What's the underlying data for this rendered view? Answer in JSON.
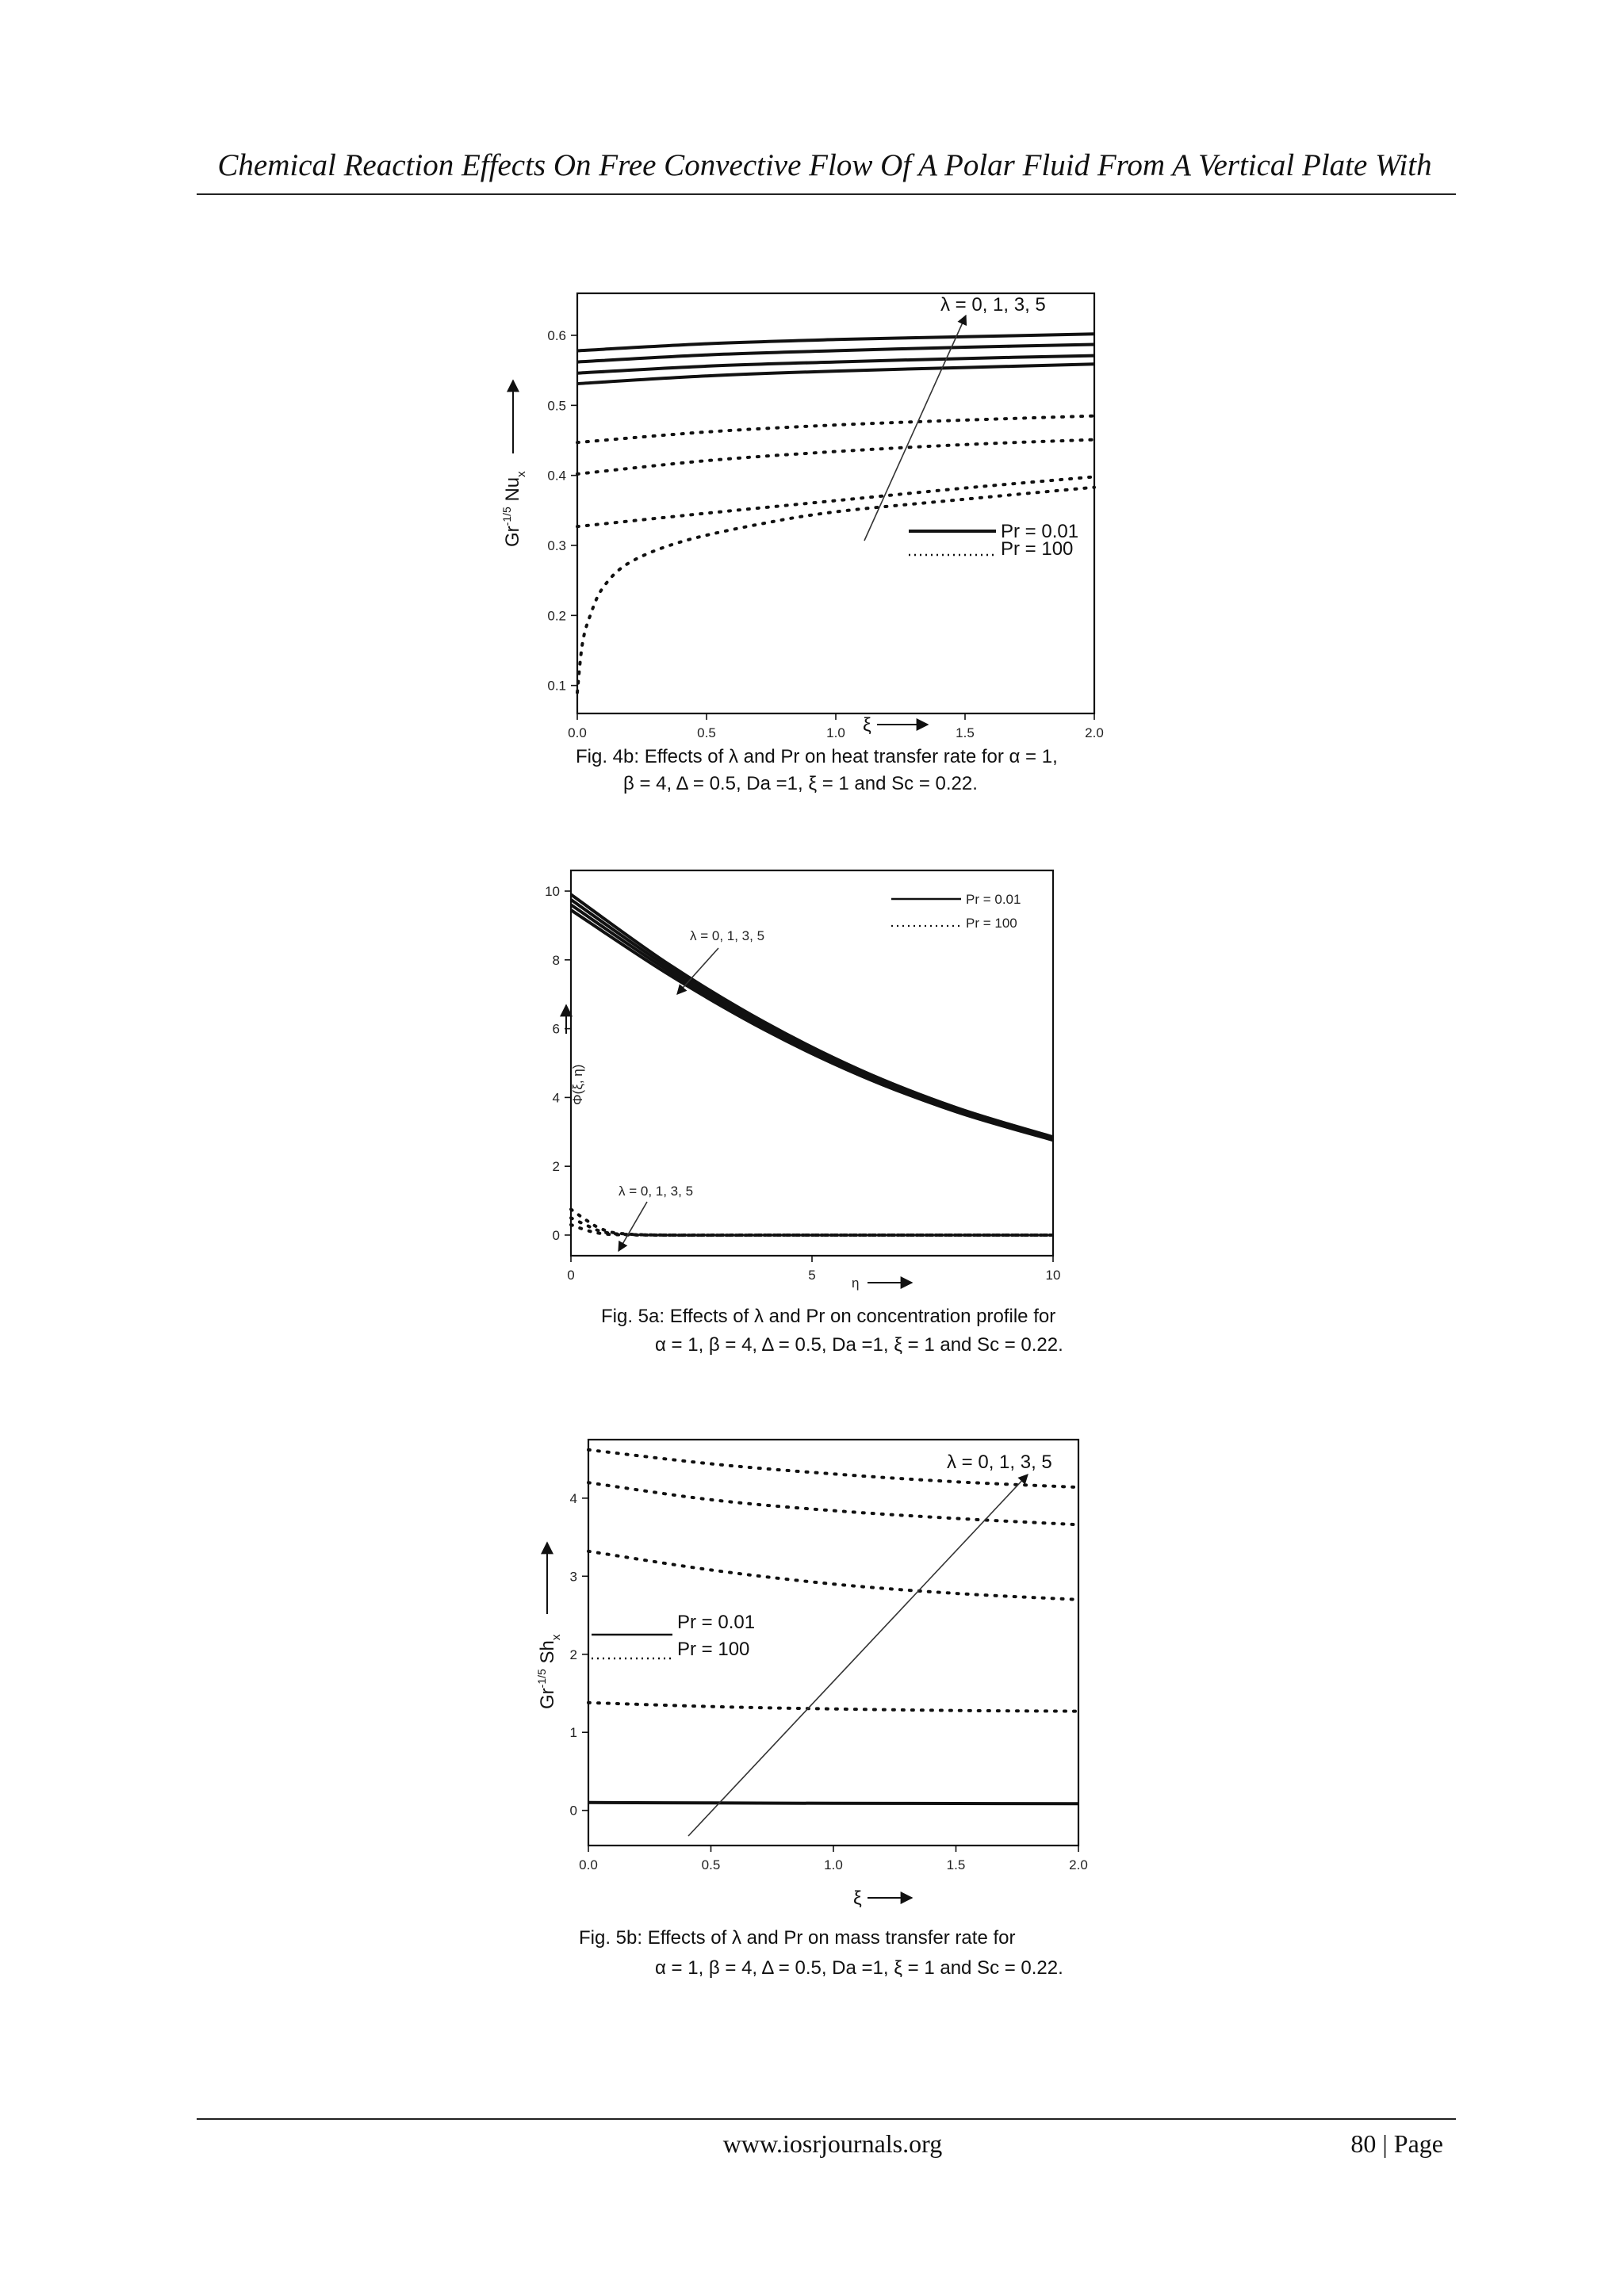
{
  "header": {
    "title": "Chemical Reaction Effects On Free Convective Flow Of A Polar Fluid From A Vertical Plate With"
  },
  "footer": {
    "url": "www.iosrjournals.org",
    "page": "80 | Page"
  },
  "figures": [
    {
      "caption_line1": "Fig. 4b: Effects of λ and Pr on heat transfer rate for α = 1,",
      "caption_line2": "β = 4, Δ = 0.5, Da =1, ξ = 1 and Sc = 0.22.",
      "ylabel": "Gr^-1/5 Nu_x",
      "xlabel": "ξ",
      "annotation": "λ = 0, 1, 3, 5",
      "legend_solid": "Pr = 0.01",
      "legend_dotted": "Pr = 100"
    },
    {
      "caption_line1": "Fig. 5a: Effects of λ and Pr on concentration profile for",
      "caption_line2": "α = 1, β = 4, Δ = 0.5, Da =1, ξ = 1 and Sc = 0.22.",
      "ylabel": "Φ(ξ, η)",
      "xlabel": "η",
      "annotation": "λ = 0, 1, 3, 5",
      "annotation2": "λ = 0, 1, 3, 5",
      "legend_solid": "Pr = 0.01",
      "legend_dotted": "Pr = 100"
    },
    {
      "caption_line1": "Fig. 5b: Effects of λ and Pr on mass transfer rate for",
      "caption_line2": "α = 1, β = 4, Δ = 0.5, Da =1, ξ = 1 and Sc = 0.22.",
      "ylabel": "Gr^-1/5 Sh_x",
      "xlabel": "ξ",
      "annotation": "λ = 0, 1, 3, 5",
      "legend_solid": "Pr = 0.01",
      "legend_dotted": "Pr = 100"
    }
  ],
  "chart_data": [
    {
      "type": "line",
      "x_ticks": [
        "0.0",
        "0.5",
        "1.0",
        "1.5",
        "2.0"
      ],
      "y_ticks": [
        "0.1",
        "0.2",
        "0.3",
        "0.4",
        "0.5",
        "0.6"
      ],
      "xlim": [
        0,
        2
      ],
      "ylim": [
        0.06,
        0.66
      ],
      "series": [
        {
          "name": "Pr = 0.01",
          "style": "solid",
          "x": [
            0,
            0.5,
            1,
            1.5,
            2
          ],
          "y": [
            0.578,
            0.588,
            0.594,
            0.598,
            0.602
          ]
        },
        {
          "name": "Pr = 0.01",
          "style": "solid",
          "x": [
            0,
            0.5,
            1,
            1.5,
            2
          ],
          "y": [
            0.562,
            0.572,
            0.578,
            0.583,
            0.587
          ]
        },
        {
          "name": "Pr = 0.01",
          "style": "solid",
          "x": [
            0,
            0.5,
            1,
            1.5,
            2
          ],
          "y": [
            0.546,
            0.556,
            0.562,
            0.567,
            0.571
          ]
        },
        {
          "name": "Pr = 0.01",
          "style": "solid",
          "x": [
            0,
            0.5,
            1,
            1.5,
            2
          ],
          "y": [
            0.531,
            0.542,
            0.549,
            0.554,
            0.559
          ]
        },
        {
          "name": "Pr = 100",
          "style": "dotted",
          "x": [
            0,
            0.5,
            1,
            1.5,
            2
          ],
          "y": [
            0.447,
            0.462,
            0.472,
            0.479,
            0.485
          ]
        },
        {
          "name": "Pr = 100",
          "style": "dotted",
          "x": [
            0,
            0.5,
            1,
            1.5,
            2
          ],
          "y": [
            0.402,
            0.421,
            0.434,
            0.444,
            0.451
          ]
        },
        {
          "name": "Pr = 100",
          "style": "dotted",
          "x": [
            0,
            0.5,
            1,
            1.5,
            2
          ],
          "y": [
            0.327,
            0.346,
            0.364,
            0.382,
            0.398
          ]
        },
        {
          "name": "Pr = 100",
          "style": "dotted",
          "x": [
            0,
            0.02,
            0.05,
            0.1,
            0.2,
            0.4,
            0.7,
            1,
            1.5,
            2
          ],
          "y": [
            0.09,
            0.16,
            0.2,
            0.24,
            0.275,
            0.305,
            0.33,
            0.348,
            0.366,
            0.383
          ]
        }
      ]
    },
    {
      "type": "line",
      "x_ticks": [
        "0",
        "5",
        "10"
      ],
      "y_ticks": [
        "0",
        "2",
        "4",
        "6",
        "8",
        "10"
      ],
      "xlim": [
        0,
        10
      ],
      "ylim": [
        -0.6,
        10.6
      ],
      "series": [
        {
          "name": "Pr = 0.01",
          "style": "solid",
          "x": [
            0,
            2,
            4,
            6,
            8,
            10
          ],
          "y": [
            9.9,
            7.9,
            6.2,
            4.8,
            3.7,
            2.85
          ]
        },
        {
          "name": "Pr = 0.01",
          "style": "solid",
          "x": [
            0,
            2,
            4,
            6,
            8,
            10
          ],
          "y": [
            9.75,
            7.8,
            6.12,
            4.74,
            3.66,
            2.82
          ]
        },
        {
          "name": "Pr = 0.01",
          "style": "solid",
          "x": [
            0,
            2,
            4,
            6,
            8,
            10
          ],
          "y": [
            9.6,
            7.7,
            6.05,
            4.69,
            3.62,
            2.79
          ]
        },
        {
          "name": "Pr = 0.01",
          "style": "solid",
          "x": [
            0,
            2,
            4,
            6,
            8,
            10
          ],
          "y": [
            9.45,
            7.6,
            5.98,
            4.64,
            3.58,
            2.76
          ]
        },
        {
          "name": "Pr = 100",
          "style": "dotted",
          "x": [
            0,
            0.3,
            0.6,
            1,
            2,
            5,
            10
          ],
          "y": [
            0.75,
            0.45,
            0.2,
            0.05,
            0,
            0,
            0
          ]
        },
        {
          "name": "Pr = 100",
          "style": "dotted",
          "x": [
            0,
            0.3,
            0.6,
            1,
            2,
            5,
            10
          ],
          "y": [
            0.5,
            0.3,
            0.12,
            0.03,
            0,
            0,
            0
          ]
        },
        {
          "name": "Pr = 100",
          "style": "dotted",
          "x": [
            0,
            0.3,
            0.6,
            1,
            2,
            5,
            10
          ],
          "y": [
            0.3,
            0.15,
            0.05,
            0.01,
            0,
            0,
            0
          ]
        }
      ]
    },
    {
      "type": "line",
      "x_ticks": [
        "0.0",
        "0.5",
        "1.0",
        "1.5",
        "2.0"
      ],
      "y_ticks": [
        "0",
        "1",
        "2",
        "3",
        "4"
      ],
      "xlim": [
        0,
        2
      ],
      "ylim": [
        -0.45,
        4.75
      ],
      "series": [
        {
          "name": "Pr = 0.01",
          "style": "solid",
          "x": [
            0,
            0.5,
            1,
            1.5,
            2
          ],
          "y": [
            0.1,
            0.095,
            0.09,
            0.088,
            0.085
          ]
        },
        {
          "name": "Pr = 100",
          "style": "dotted",
          "x": [
            0,
            0.5,
            1,
            1.5,
            2
          ],
          "y": [
            1.38,
            1.33,
            1.3,
            1.28,
            1.27
          ]
        },
        {
          "name": "Pr = 100",
          "style": "dotted",
          "x": [
            0,
            0.5,
            1,
            1.5,
            2
          ],
          "y": [
            3.32,
            3.08,
            2.9,
            2.78,
            2.7
          ]
        },
        {
          "name": "Pr = 100",
          "style": "dotted",
          "x": [
            0,
            0.5,
            1,
            1.5,
            2
          ],
          "y": [
            4.2,
            3.98,
            3.84,
            3.74,
            3.66
          ]
        },
        {
          "name": "Pr = 100",
          "style": "dotted",
          "x": [
            0,
            0.5,
            1,
            1.5,
            2
          ],
          "y": [
            4.62,
            4.44,
            4.31,
            4.21,
            4.14
          ]
        }
      ]
    }
  ]
}
